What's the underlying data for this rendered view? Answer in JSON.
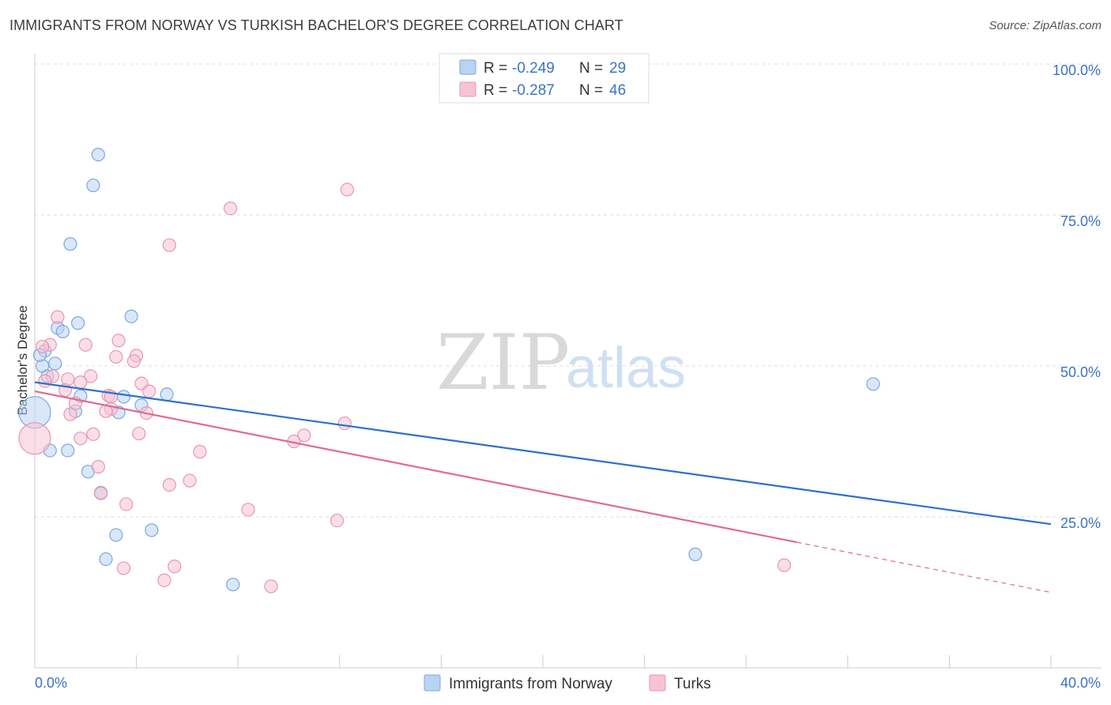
{
  "header": {
    "title": "IMMIGRANTS FROM NORWAY VS TURKISH BACHELOR'S DEGREE CORRELATION CHART",
    "source": "Source: ZipAtlas.com"
  },
  "legend_top": {
    "rows": [
      {
        "r_label": "R =",
        "r_value": "-0.249",
        "n_label": "N =",
        "n_value": "29"
      },
      {
        "r_label": "R =",
        "r_value": "-0.287",
        "n_label": "N =",
        "n_value": "46"
      }
    ]
  },
  "legend_bottom": {
    "items": [
      {
        "label": "Immigrants from Norway"
      },
      {
        "label": "Turks"
      }
    ]
  },
  "watermark": {
    "zip": "ZIP",
    "atlas": "atlas"
  },
  "chart_data": {
    "type": "scatter",
    "xlabel": "",
    "ylabel": "Bachelor's Degree",
    "xlim": [
      0,
      40
    ],
    "ylim": [
      0,
      100
    ],
    "x_tick_labels": [
      "0.0%",
      "40.0%"
    ],
    "y_ticks": [
      25,
      50,
      75,
      100
    ],
    "y_tick_labels": [
      "25.0%",
      "50.0%",
      "75.0%",
      "100.0%"
    ],
    "grid": true,
    "legend_position": "top-center",
    "colors": {
      "norway_fill": "#b9d3f2",
      "norway_stroke": "#7aa7de",
      "norway_line": "#2e6fcc",
      "turks_fill": "#f7c3d3",
      "turks_stroke": "#e995b0",
      "turks_line": "#e06a93"
    },
    "series": [
      {
        "name": "Immigrants from Norway",
        "points": [
          [
            2.5,
            85
          ],
          [
            2.3,
            79.9
          ],
          [
            1.4,
            70.2
          ],
          [
            3.8,
            58.2
          ],
          [
            1.7,
            57.1
          ],
          [
            0.9,
            56.3
          ],
          [
            1.1,
            55.7
          ],
          [
            0.4,
            52.5
          ],
          [
            0.8,
            50.4
          ],
          [
            0.3,
            50.0
          ],
          [
            0.5,
            48.3
          ],
          [
            1.8,
            45.0
          ],
          [
            3.5,
            44.9
          ],
          [
            5.2,
            45.3
          ],
          [
            4.2,
            43.5
          ],
          [
            1.6,
            42.5
          ],
          [
            3.3,
            42.3
          ],
          [
            0.0,
            42.3
          ],
          [
            0.6,
            36.0
          ],
          [
            1.3,
            36.0
          ],
          [
            2.1,
            32.5
          ],
          [
            2.6,
            29.0
          ],
          [
            4.6,
            22.8
          ],
          [
            3.2,
            22.0
          ],
          [
            2.8,
            18.0
          ],
          [
            7.8,
            13.8
          ],
          [
            26.0,
            18.8
          ],
          [
            33.0,
            47.0
          ],
          [
            0.2,
            51.8
          ]
        ],
        "sizes": [
          1,
          1,
          1,
          1,
          1,
          1,
          1,
          1,
          1,
          1,
          1,
          1,
          1,
          1,
          1,
          1,
          1,
          3,
          1,
          1,
          1,
          1,
          1,
          1,
          1,
          1,
          1,
          1,
          1
        ],
        "trend": {
          "x0": 0,
          "y0": 47.3,
          "x1": 40,
          "y1": 23.8
        }
      },
      {
        "name": "Turks",
        "points": [
          [
            12.3,
            79.2
          ],
          [
            7.7,
            76.1
          ],
          [
            5.3,
            70.0
          ],
          [
            0.9,
            58.1
          ],
          [
            0.6,
            53.5
          ],
          [
            0.3,
            53.2
          ],
          [
            2.0,
            53.5
          ],
          [
            3.3,
            54.2
          ],
          [
            3.2,
            51.5
          ],
          [
            4.0,
            51.7
          ],
          [
            3.9,
            50.8
          ],
          [
            0.7,
            48.3
          ],
          [
            2.2,
            48.3
          ],
          [
            1.3,
            47.8
          ],
          [
            1.8,
            47.3
          ],
          [
            4.2,
            47.1
          ],
          [
            1.2,
            46.0
          ],
          [
            4.5,
            45.8
          ],
          [
            2.9,
            45.1
          ],
          [
            3.0,
            44.9
          ],
          [
            1.6,
            43.8
          ],
          [
            3.0,
            42.9
          ],
          [
            4.4,
            42.2
          ],
          [
            1.4,
            42.0
          ],
          [
            12.2,
            40.5
          ],
          [
            4.1,
            38.8
          ],
          [
            2.3,
            38.7
          ],
          [
            1.8,
            38.0
          ],
          [
            10.6,
            38.5
          ],
          [
            10.2,
            37.5
          ],
          [
            6.5,
            35.8
          ],
          [
            0.0,
            38.0
          ],
          [
            2.5,
            33.3
          ],
          [
            6.1,
            31.0
          ],
          [
            5.3,
            30.3
          ],
          [
            2.6,
            28.9
          ],
          [
            3.6,
            27.1
          ],
          [
            8.4,
            26.2
          ],
          [
            11.9,
            24.4
          ],
          [
            29.5,
            17.0
          ],
          [
            9.3,
            13.5
          ],
          [
            5.5,
            16.8
          ],
          [
            3.5,
            16.5
          ],
          [
            5.1,
            14.5
          ],
          [
            0.4,
            47.5
          ],
          [
            2.8,
            42.5
          ]
        ],
        "sizes": [
          1,
          1,
          1,
          1,
          1,
          1,
          1,
          1,
          1,
          1,
          1,
          1,
          1,
          1,
          1,
          1,
          1,
          1,
          1,
          1,
          1,
          1,
          1,
          1,
          1,
          1,
          1,
          1,
          1,
          1,
          1,
          3,
          1,
          1,
          1,
          1,
          1,
          1,
          1,
          1,
          1,
          1,
          1,
          1,
          1,
          1
        ],
        "trend": {
          "x0": 0,
          "y0": 45.8,
          "x1": 30,
          "y1": 20.8
        },
        "trend_dashed": {
          "x0": 30,
          "y0": 20.8,
          "x1": 40,
          "y1": 12.5
        }
      }
    ]
  }
}
